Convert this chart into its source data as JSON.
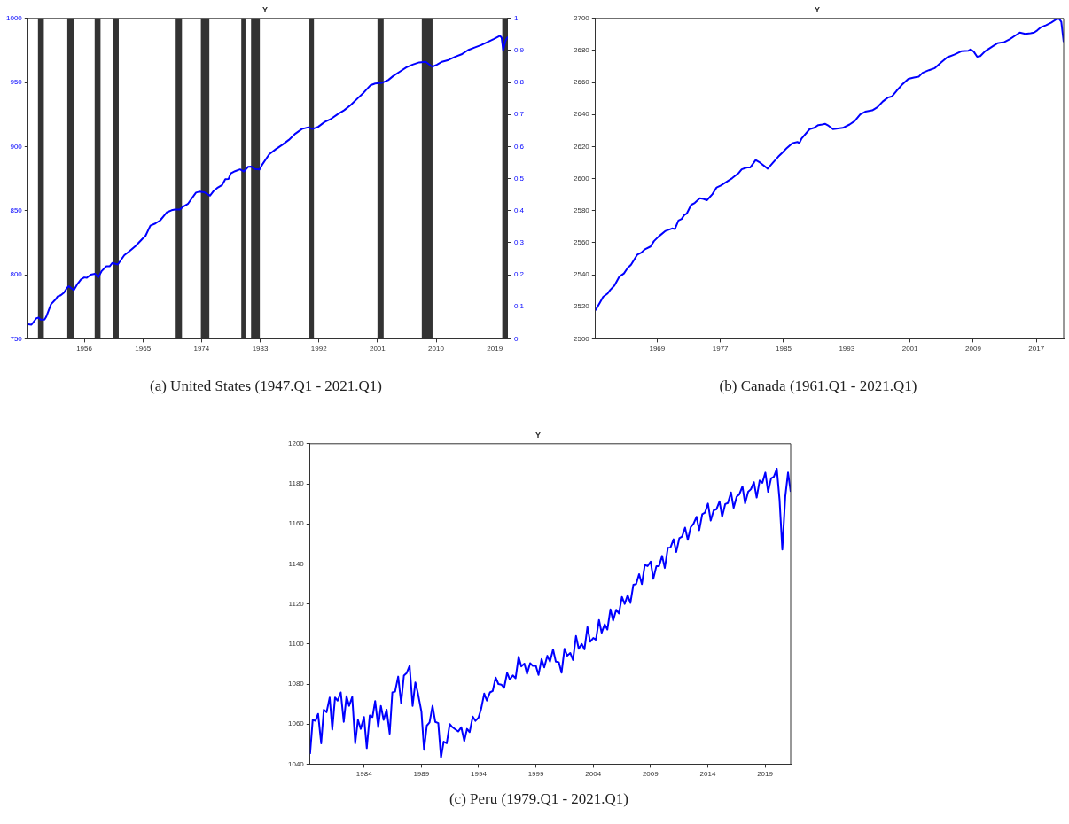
{
  "chart_data": [
    {
      "type": "line",
      "title": "Y",
      "annotations": [
        "(a) United States (1947.Q1 - 2021.Q1)"
      ],
      "grid": false,
      "xlim": [
        1947.4,
        2021.0
      ],
      "xticks": [
        1956,
        1965,
        1974,
        1983,
        1992,
        2001,
        2010,
        2019
      ],
      "ylim": [
        750,
        1000
      ],
      "yticks": [
        750,
        800,
        850,
        900,
        950,
        1000
      ],
      "y2lim": [
        0,
        1
      ],
      "y2ticks": [
        0,
        0.1,
        0.2,
        0.3,
        0.4,
        0.5,
        0.6,
        0.7,
        0.8,
        0.9,
        1
      ],
      "bands": [
        {
          "axis": "x",
          "from": 1948.9,
          "to": 1949.8,
          "color": "#333333"
        },
        {
          "axis": "x",
          "from": 1953.4,
          "to": 1954.5,
          "color": "#333333"
        },
        {
          "axis": "x",
          "from": 1957.6,
          "to": 1958.5,
          "color": "#333333"
        },
        {
          "axis": "x",
          "from": 1960.4,
          "to": 1961.3,
          "color": "#333333"
        },
        {
          "axis": "x",
          "from": 1969.9,
          "to": 1971.0,
          "color": "#333333"
        },
        {
          "axis": "x",
          "from": 1973.9,
          "to": 1975.2,
          "color": "#333333"
        },
        {
          "axis": "x",
          "from": 1980.1,
          "to": 1980.75,
          "color": "#333333"
        },
        {
          "axis": "x",
          "from": 1981.6,
          "to": 1982.95,
          "color": "#333333"
        },
        {
          "axis": "x",
          "from": 1990.55,
          "to": 1991.25,
          "color": "#333333"
        },
        {
          "axis": "x",
          "from": 2001.0,
          "to": 2001.95,
          "color": "#333333"
        },
        {
          "axis": "x",
          "from": 2007.8,
          "to": 2009.45,
          "color": "#333333"
        },
        {
          "axis": "x",
          "from": 2020.15,
          "to": 2021.0,
          "color": "#333333"
        }
      ],
      "series": [
        {
          "color": "#0000ff",
          "x": [
            1947.4,
            1947.9,
            1948.65,
            1949.0,
            1949.3,
            1949.9,
            1950.15,
            1950.9,
            1951.65,
            1951.9,
            1952.4,
            1952.9,
            1953.4,
            1953.65,
            1954.4,
            1954.9,
            1955.5,
            1956.0,
            1956.4,
            1957.0,
            1957.65,
            1958.15,
            1958.65,
            1959.4,
            1959.9,
            1960.3,
            1961.15,
            1962.15,
            1962.9,
            1963.9,
            1964.9,
            1965.4,
            1966.15,
            1966.9,
            1967.65,
            1968.15,
            1968.65,
            1969.4,
            1969.9,
            1970.65,
            1971.15,
            1971.9,
            1972.4,
            1973.15,
            1973.65,
            1974.4,
            1975.3,
            1975.9,
            1976.4,
            1977.15,
            1977.65,
            1978.15,
            1978.5,
            1979.15,
            1979.9,
            1980.5,
            1981.15,
            1981.65,
            1982.15,
            1982.9,
            1983.4,
            1984.4,
            1985.4,
            1986.4,
            1987.4,
            1988.4,
            1989.4,
            1990.4,
            1991.0,
            1991.9,
            1992.9,
            1993.9,
            1994.9,
            1995.9,
            1996.9,
            1997.9,
            1998.9,
            1999.9,
            2000.65,
            2001.65,
            2002.65,
            2003.4,
            2004.4,
            2005.4,
            2006.4,
            2007.4,
            2008.4,
            2009.4,
            2010.15,
            2010.9,
            2011.9,
            2012.9,
            2013.9,
            2014.9,
            2015.9,
            2016.9,
            2017.9,
            2018.9,
            2019.8,
            2020.05,
            2020.3,
            2020.65,
            2021.0
          ],
          "values": [
            761.4,
            761,
            766,
            766.5,
            765,
            765,
            767,
            777,
            781,
            783,
            784,
            786,
            790,
            791,
            788,
            792.3,
            796.4,
            797.9,
            797.6,
            800,
            800.8,
            797.9,
            802.7,
            806.6,
            806.6,
            809.2,
            808,
            815.3,
            818.2,
            822.5,
            827.9,
            830.3,
            838.3,
            840,
            842.4,
            845.5,
            848.6,
            850.3,
            850.8,
            850.8,
            853,
            855.2,
            858.8,
            864.1,
            864.8,
            864.4,
            861.7,
            865.6,
            867.7,
            869.9,
            874.5,
            874.8,
            879.1,
            880.8,
            882.2,
            880.6,
            884.2,
            884.4,
            882.5,
            882.2,
            886.6,
            894.1,
            898,
            901.4,
            905.2,
            910.1,
            913.7,
            915.1,
            913.7,
            915.4,
            919.2,
            921.7,
            925.3,
            928.4,
            932.5,
            937.4,
            942.2,
            947.8,
            949.2,
            949.7,
            951.9,
            955,
            958.4,
            961.8,
            964,
            965.7,
            966.2,
            962.3,
            964,
            966.2,
            967.6,
            970,
            972,
            975.3,
            977.3,
            979.2,
            981.6,
            984,
            986.5,
            985,
            975.3,
            982.6,
            985.7
          ]
        }
      ]
    },
    {
      "type": "line",
      "title": "Y",
      "annotations": [
        "(b) Canada (1961.Q1 - 2021.Q1)"
      ],
      "grid": false,
      "xlim": [
        1961.2,
        2020.45
      ],
      "xticks": [
        1969,
        1977,
        1985,
        1993,
        2001,
        2009,
        2017
      ],
      "ylim": [
        2500,
        2700
      ],
      "yticks": [
        2500,
        2520,
        2540,
        2560,
        2580,
        2600,
        2620,
        2640,
        2660,
        2680,
        2700
      ],
      "series": [
        {
          "color": "#0000ff",
          "x": [
            1961.2,
            1961.73,
            1962.17,
            1962.74,
            1963.05,
            1963.6,
            1964.2,
            1964.8,
            1965.26,
            1965.7,
            1966.5,
            1967.0,
            1967.46,
            1968.16,
            1968.6,
            1969.2,
            1970.0,
            1970.9,
            1971.25,
            1971.7,
            1972.1,
            1972.44,
            1972.74,
            1973.3,
            1973.76,
            1974.4,
            1974.86,
            1975.3,
            1976.0,
            1976.53,
            1977.06,
            1977.72,
            1978.5,
            1979.26,
            1979.7,
            1980.37,
            1980.8,
            1981.47,
            1981.9,
            1983.0,
            1983.58,
            1984.33,
            1984.77,
            1985.43,
            1986.1,
            1986.75,
            1987.0,
            1987.28,
            1988.3,
            1988.87,
            1989.4,
            1989.9,
            1990.28,
            1990.7,
            1991.25,
            1992.5,
            1993.36,
            1994.0,
            1994.7,
            1995.34,
            1996.23,
            1996.9,
            1997.55,
            1998.2,
            1998.74,
            1999.3,
            1999.97,
            2000.8,
            2001.5,
            2002.1,
            2002.6,
            2003.4,
            2004.15,
            2004.9,
            2005.7,
            2006.6,
            2007.5,
            2008.4,
            2008.7,
            2009.1,
            2009.5,
            2009.9,
            2010.5,
            2011.4,
            2012.06,
            2012.95,
            2013.6,
            2014.26,
            2014.9,
            2015.6,
            2016.26,
            2016.7,
            2017.1,
            2017.6,
            2018.24,
            2018.9,
            2019.57,
            2019.9,
            2020.15,
            2020.45
          ],
          "values": [
            2517.8,
            2522.4,
            2526.2,
            2528.3,
            2530.4,
            2533.3,
            2538.7,
            2540.8,
            2544.2,
            2546.3,
            2552.6,
            2553.8,
            2555.9,
            2557.6,
            2561,
            2563.9,
            2567.2,
            2568.9,
            2568.5,
            2573.9,
            2574.8,
            2577.3,
            2578.1,
            2583.6,
            2584.8,
            2587.7,
            2587.3,
            2586.5,
            2590.3,
            2594.5,
            2595.7,
            2597.8,
            2600.3,
            2603.2,
            2605.8,
            2607,
            2607,
            2611.6,
            2610.4,
            2606.2,
            2609.5,
            2613.7,
            2615.8,
            2619.2,
            2622.1,
            2622.9,
            2622.1,
            2625,
            2630.9,
            2631.7,
            2633.4,
            2633.8,
            2634.2,
            2633,
            2630.9,
            2631.7,
            2633.8,
            2635.9,
            2640.1,
            2641.8,
            2642.6,
            2644.7,
            2648.1,
            2650.6,
            2651.4,
            2654.8,
            2658.5,
            2662.3,
            2663.1,
            2663.6,
            2666.1,
            2667.7,
            2669,
            2672.4,
            2675.7,
            2677.4,
            2679.5,
            2679.9,
            2680.7,
            2679.1,
            2676.1,
            2676.5,
            2679.5,
            2682.4,
            2684.5,
            2685.3,
            2687,
            2689.1,
            2691.2,
            2690.4,
            2690.8,
            2691.2,
            2692.5,
            2694.6,
            2695.8,
            2697.5,
            2699.6,
            2699.6,
            2697.9,
            2685.3
          ]
        }
      ]
    },
    {
      "type": "line",
      "title": "Y",
      "annotations": [
        "(c) Peru (1979.Q1 - 2021.Q1)"
      ],
      "grid": false,
      "xlim": [
        1979.29,
        2021.24
      ],
      "xticks": [
        1984,
        1989,
        1994,
        1999,
        2004,
        2009,
        2014,
        2019
      ],
      "ylim": [
        1040,
        1200
      ],
      "yticks": [
        1040,
        1060,
        1080,
        1100,
        1120,
        1140,
        1160,
        1180,
        1200
      ],
      "series": [
        {
          "color": "#0000ff",
          "x": [
            1979.29,
            1979.52,
            1979.76,
            1979.99,
            1980.26,
            1980.49,
            1980.73,
            1981.0,
            1981.23,
            1981.47,
            1981.7,
            1981.97,
            1982.23,
            1982.47,
            1982.7,
            1982.97,
            1983.23,
            1983.47,
            1983.71,
            1984.0,
            1984.24,
            1984.5,
            1984.74,
            1984.97,
            1985.24,
            1985.47,
            1985.71,
            1985.97,
            1986.24,
            1986.47,
            1986.71,
            1986.98,
            1987.24,
            1987.48,
            1987.71,
            1987.98,
            1988.24,
            1988.48,
            1988.71,
            1989.01,
            1989.24,
            1989.48,
            1989.72,
            1989.98,
            1990.22,
            1990.48,
            1990.72,
            1990.95,
            1991.22,
            1991.48,
            1991.72,
            1991.98,
            1992.22,
            1992.49,
            1992.75,
            1992.99,
            1993.22,
            1993.49,
            1993.72,
            1993.99,
            1994.22,
            1994.49,
            1994.72,
            1994.99,
            1995.23,
            1995.49,
            1995.73,
            1995.99,
            1996.23,
            1996.49,
            1996.73,
            1996.99,
            1997.23,
            1997.49,
            1997.73,
            1998.0,
            1998.23,
            1998.5,
            1998.73,
            1999.0,
            1999.23,
            1999.5,
            1999.73,
            2000.0,
            2000.23,
            2000.5,
            2000.74,
            2001.0,
            2001.24,
            2001.5,
            2001.74,
            2002.0,
            2002.24,
            2002.5,
            2002.74,
            2003.0,
            2003.24,
            2003.5,
            2003.74,
            2004.01,
            2004.24,
            2004.51,
            2004.74,
            2005.01,
            2005.24,
            2005.51,
            2005.74,
            2006.01,
            2006.25,
            2006.51,
            2006.75,
            2007.01,
            2007.25,
            2007.51,
            2007.75,
            2008.01,
            2008.25,
            2008.51,
            2008.75,
            2009.02,
            2009.25,
            2009.52,
            2009.75,
            2010.02,
            2010.25,
            2010.52,
            2010.75,
            2011.02,
            2011.25,
            2011.52,
            2011.76,
            2012.02,
            2012.26,
            2012.52,
            2012.76,
            2013.02,
            2013.26,
            2013.52,
            2013.76,
            2014.02,
            2014.26,
            2014.52,
            2014.76,
            2015.03,
            2015.26,
            2015.53,
            2015.76,
            2016.03,
            2016.26,
            2016.53,
            2016.76,
            2017.03,
            2017.26,
            2017.53,
            2017.77,
            2018.03,
            2018.27,
            2018.53,
            2018.77,
            2019.03,
            2019.27,
            2019.53,
            2019.77,
            2020.03,
            2020.27,
            2020.51,
            2020.77,
            2021.01,
            2021.24
          ],
          "values": [
            1045.1,
            1062.1,
            1061.6,
            1065.1,
            1050.4,
            1067.2,
            1065.9,
            1073.3,
            1057.3,
            1073.3,
            1071.7,
            1075.8,
            1061.1,
            1073.9,
            1069.1,
            1073.6,
            1050.4,
            1062.1,
            1057.6,
            1063.5,
            1048,
            1064.3,
            1063.5,
            1071.5,
            1058.4,
            1069.1,
            1062.1,
            1067.2,
            1055.2,
            1075.8,
            1076.2,
            1083.7,
            1070.4,
            1084.2,
            1085.4,
            1089.1,
            1069.1,
            1080.8,
            1075.2,
            1066.2,
            1047.2,
            1059.2,
            1060.8,
            1069.1,
            1061.1,
            1060.5,
            1043.2,
            1051.2,
            1050.4,
            1060,
            1058.4,
            1057.3,
            1056.3,
            1058.4,
            1051.5,
            1057.6,
            1056,
            1063.7,
            1061.6,
            1063.2,
            1067.5,
            1075.2,
            1071.7,
            1075.8,
            1076.5,
            1083.2,
            1080,
            1079.7,
            1078.1,
            1085.6,
            1082.2,
            1084.3,
            1082.9,
            1093.6,
            1088.8,
            1090.2,
            1085.1,
            1090.4,
            1089.1,
            1089.1,
            1084.5,
            1092.5,
            1088.3,
            1094.1,
            1091.2,
            1097.3,
            1091.2,
            1090.9,
            1085.6,
            1097.6,
            1094.1,
            1095.5,
            1092,
            1104,
            1097.6,
            1100,
            1097.3,
            1108.5,
            1101.1,
            1103,
            1102.1,
            1112,
            1105.6,
            1109.8,
            1107.2,
            1117.3,
            1111.7,
            1117.1,
            1115.2,
            1123.5,
            1120,
            1124.3,
            1120.5,
            1129.6,
            1129.9,
            1134.9,
            1129.9,
            1139.5,
            1138.9,
            1141.1,
            1132.5,
            1138.9,
            1138.9,
            1144,
            1137.9,
            1148,
            1148.2,
            1152.3,
            1145.9,
            1152.8,
            1153.6,
            1158.1,
            1152,
            1158.4,
            1160,
            1163.5,
            1156.8,
            1164.8,
            1165.6,
            1170.1,
            1161.6,
            1166.7,
            1167.2,
            1171.2,
            1163.5,
            1169.9,
            1170.4,
            1175.7,
            1168,
            1173.6,
            1174.7,
            1178.7,
            1170.2,
            1176,
            1177.3,
            1180.8,
            1173.1,
            1181.6,
            1180.5,
            1185.6,
            1176,
            1182.7,
            1183.5,
            1187.5,
            1172,
            1147.2,
            1173.6,
            1185.6,
            1176
          ]
        }
      ]
    }
  ]
}
